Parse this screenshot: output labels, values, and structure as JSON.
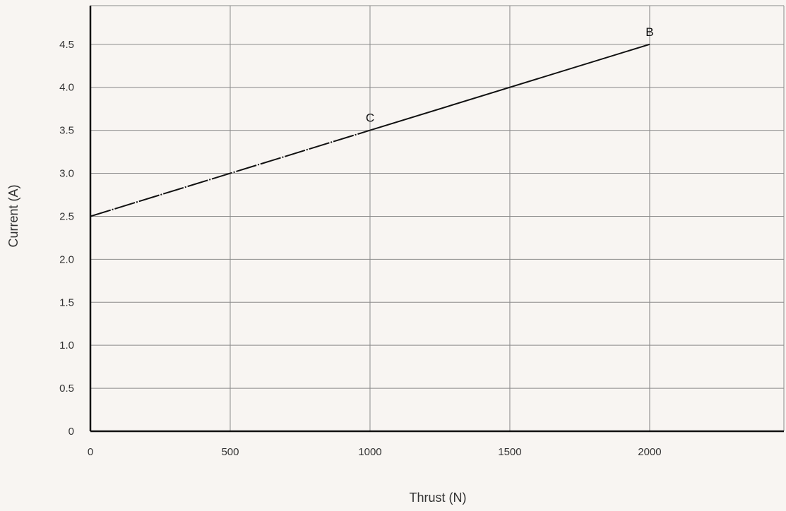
{
  "chart_data": {
    "type": "line",
    "title": "",
    "xlabel": "Thrust (N)",
    "ylabel": "Current (A)",
    "xlim": [
      0,
      2480
    ],
    "ylim": [
      0,
      4.95
    ],
    "x_ticks": [
      0,
      500,
      1000,
      1500,
      2000
    ],
    "x_tick_labels": [
      "0",
      "500",
      "1000",
      "1500",
      "2000"
    ],
    "y_ticks": [
      0,
      0.5,
      1.0,
      1.5,
      2.0,
      2.5,
      3.0,
      3.5,
      4.0,
      4.5
    ],
    "y_tick_labels": [
      "0",
      "0.5",
      "1.0",
      "1.5",
      "2.0",
      "2.5",
      "3.0",
      "3.5",
      "4.0",
      "4.5"
    ],
    "grid": true,
    "series": [
      {
        "segments": [
          {
            "x": [
              0,
              1000
            ],
            "y": [
              2.5,
              3.5
            ],
            "style": "dash-dot"
          },
          {
            "x": [
              1000,
              2000
            ],
            "y": [
              3.5,
              4.5
            ],
            "style": "solid"
          }
        ]
      }
    ],
    "annotations": [
      {
        "text": "C",
        "x": 1000,
        "y": 3.5
      },
      {
        "text": "B",
        "x": 2000,
        "y": 4.5
      }
    ],
    "colors": {
      "background": "#f8f5f2",
      "grid": "#8a8a8a",
      "axis": "#111111",
      "line": "#111111",
      "text": "#333333"
    }
  }
}
